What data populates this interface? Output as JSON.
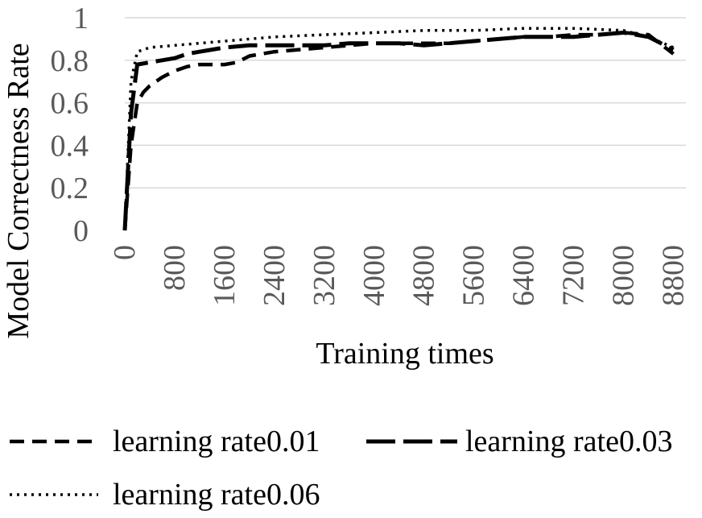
{
  "chart_data": {
    "type": "line",
    "title": "",
    "xlabel": "Training times",
    "ylabel": "Model Correctness Rate",
    "x_ticks": [
      0,
      800,
      1600,
      2400,
      3200,
      4000,
      4800,
      5600,
      6400,
      7200,
      8000,
      8800
    ],
    "y_ticks": [
      "0",
      "0.2",
      "0.4",
      "0.6",
      "0.8",
      "1"
    ],
    "xlim": [
      0,
      9000
    ],
    "ylim": [
      0,
      1
    ],
    "grid": "horizontal",
    "legend_position": "bottom",
    "series": [
      {
        "name": "learning rate0.01",
        "style": "short-dash",
        "color": "#000000",
        "x": [
          0,
          100,
          200,
          300,
          400,
          600,
          800,
          1000,
          1200,
          1400,
          1600,
          1800,
          2000,
          2400,
          2800,
          3200,
          3600,
          4000,
          4400,
          4800,
          5200,
          5600,
          6000,
          6400,
          6800,
          7200,
          7600,
          8000,
          8400,
          8800
        ],
        "y": [
          0,
          0.4,
          0.6,
          0.65,
          0.68,
          0.72,
          0.75,
          0.77,
          0.78,
          0.78,
          0.78,
          0.79,
          0.82,
          0.84,
          0.85,
          0.86,
          0.87,
          0.88,
          0.88,
          0.88,
          0.88,
          0.89,
          0.9,
          0.91,
          0.91,
          0.92,
          0.92,
          0.93,
          0.92,
          0.83
        ]
      },
      {
        "name": "learning rate0.03",
        "style": "long-dash",
        "color": "#000000",
        "x": [
          0,
          100,
          200,
          400,
          600,
          800,
          1000,
          1200,
          1600,
          2000,
          2400,
          2800,
          3200,
          3600,
          4000,
          4400,
          4800,
          5200,
          5600,
          6000,
          6400,
          6800,
          7200,
          7600,
          8000,
          8400,
          8800
        ],
        "y": [
          0,
          0.55,
          0.78,
          0.79,
          0.8,
          0.81,
          0.83,
          0.84,
          0.86,
          0.87,
          0.87,
          0.87,
          0.87,
          0.88,
          0.88,
          0.88,
          0.87,
          0.88,
          0.89,
          0.9,
          0.91,
          0.91,
          0.91,
          0.92,
          0.93,
          0.91,
          0.85
        ]
      },
      {
        "name": "learning rate0.06",
        "style": "dotted",
        "color": "#000000",
        "x": [
          0,
          100,
          200,
          400,
          800,
          1200,
          1600,
          2000,
          2400,
          3200,
          4000,
          4800,
          5600,
          6400,
          7200,
          8000,
          8400,
          8800
        ],
        "y": [
          0,
          0.7,
          0.84,
          0.86,
          0.87,
          0.88,
          0.89,
          0.9,
          0.91,
          0.92,
          0.93,
          0.94,
          0.94,
          0.95,
          0.95,
          0.94,
          0.91,
          0.86
        ]
      }
    ]
  }
}
